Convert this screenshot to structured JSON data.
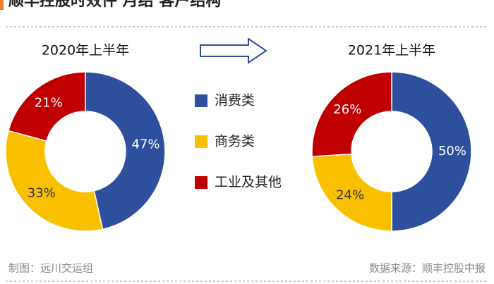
{
  "title": "顺丰控股时效件 月结 客户结构",
  "legend": {
    "labels": [
      "消费类",
      "商务类",
      "工业及其他"
    ],
    "colors": [
      "#2e4f9e",
      "#f9c000",
      "#c00000"
    ]
  },
  "chart_data": [
    {
      "type": "pie",
      "title": "2020年上半年",
      "values": [
        47,
        33,
        21
      ],
      "value_labels": [
        "47%",
        "33%",
        "21%"
      ]
    },
    {
      "type": "pie",
      "title": "2021年上半年",
      "values": [
        50,
        24,
        26
      ],
      "value_labels": [
        "50%",
        "24%",
        "26%"
      ]
    }
  ],
  "footer": {
    "left": "制图：远川交运组",
    "right": "数据来源：顺丰控股中报"
  }
}
